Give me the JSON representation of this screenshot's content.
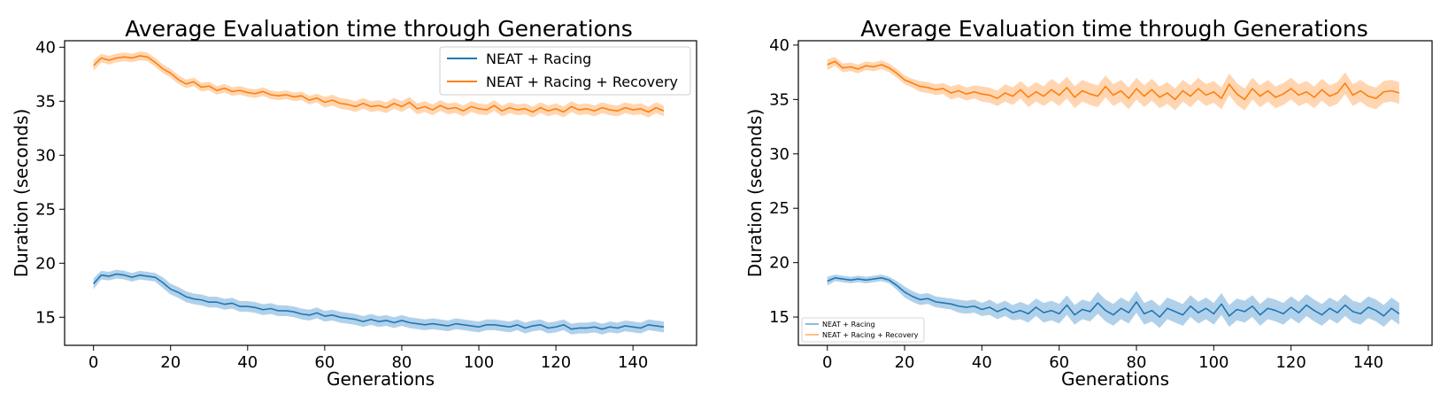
{
  "chart_data": [
    {
      "type": "line",
      "title": "Average Evaluation time through Generations",
      "xlabel": "Generations",
      "ylabel": "Duration (seconds)",
      "xlim": [
        -7.5,
        156.5
      ],
      "ylim": [
        12.4,
        40.6
      ],
      "xticks": [
        0,
        20,
        40,
        60,
        80,
        100,
        120,
        140
      ],
      "yticks": [
        15,
        20,
        25,
        30,
        35,
        40
      ],
      "legend_position": "top-right",
      "legend_size": "large",
      "shaded_band": "standard deviation",
      "series": [
        {
          "name": "NEAT + Racing",
          "color": "#1f77b4",
          "band_color": "#9ec5e5",
          "x": [
            0,
            2,
            4,
            6,
            8,
            10,
            12,
            14,
            16,
            18,
            20,
            22,
            24,
            26,
            28,
            30,
            32,
            34,
            36,
            38,
            40,
            42,
            44,
            46,
            48,
            50,
            52,
            54,
            56,
            58,
            60,
            62,
            64,
            66,
            68,
            70,
            72,
            74,
            76,
            78,
            80,
            82,
            84,
            86,
            88,
            90,
            92,
            94,
            96,
            98,
            100,
            102,
            104,
            106,
            108,
            110,
            112,
            114,
            116,
            118,
            120,
            122,
            124,
            126,
            128,
            130,
            132,
            134,
            136,
            138,
            140,
            142,
            144,
            146,
            148
          ],
          "y": [
            18.1,
            18.9,
            18.8,
            19.0,
            18.9,
            18.7,
            18.9,
            18.8,
            18.7,
            18.2,
            17.6,
            17.3,
            16.9,
            16.7,
            16.6,
            16.4,
            16.4,
            16.2,
            16.3,
            16.0,
            16.0,
            15.9,
            15.7,
            15.8,
            15.6,
            15.6,
            15.5,
            15.3,
            15.2,
            15.4,
            15.1,
            15.2,
            15.0,
            14.9,
            14.8,
            14.6,
            14.8,
            14.6,
            14.7,
            14.5,
            14.7,
            14.5,
            14.4,
            14.3,
            14.4,
            14.3,
            14.2,
            14.4,
            14.3,
            14.2,
            14.1,
            14.3,
            14.3,
            14.2,
            14.1,
            14.3,
            14.0,
            14.2,
            14.3,
            14.0,
            14.1,
            14.3,
            13.9,
            14.0,
            14.0,
            14.1,
            13.9,
            14.1,
            14.0,
            14.2,
            14.1,
            14.0,
            14.3,
            14.2,
            14.1
          ],
          "band": [
            0.5,
            0.4,
            0.4,
            0.4,
            0.4,
            0.4,
            0.4,
            0.4,
            0.4,
            0.5,
            0.5,
            0.5,
            0.5,
            0.5,
            0.5,
            0.5,
            0.5,
            0.5,
            0.5,
            0.5,
            0.5,
            0.5,
            0.5,
            0.5,
            0.5,
            0.5,
            0.5,
            0.5,
            0.5,
            0.5,
            0.5,
            0.5,
            0.5,
            0.5,
            0.5,
            0.5,
            0.5,
            0.5,
            0.5,
            0.5,
            0.5,
            0.5,
            0.5,
            0.5,
            0.5,
            0.5,
            0.5,
            0.5,
            0.5,
            0.5,
            0.5,
            0.5,
            0.5,
            0.5,
            0.5,
            0.5,
            0.5,
            0.5,
            0.5,
            0.5,
            0.5,
            0.5,
            0.5,
            0.5,
            0.5,
            0.5,
            0.5,
            0.5,
            0.5,
            0.5,
            0.5,
            0.5,
            0.5,
            0.5,
            0.5
          ]
        },
        {
          "name": "NEAT + Racing + Recovery",
          "color": "#ff7f0e",
          "band_color": "#ffcc9e",
          "x": [
            0,
            2,
            4,
            6,
            8,
            10,
            12,
            14,
            16,
            18,
            20,
            22,
            24,
            26,
            28,
            30,
            32,
            34,
            36,
            38,
            40,
            42,
            44,
            46,
            48,
            50,
            52,
            54,
            56,
            58,
            60,
            62,
            64,
            66,
            68,
            70,
            72,
            74,
            76,
            78,
            80,
            82,
            84,
            86,
            88,
            90,
            92,
            94,
            96,
            98,
            100,
            102,
            104,
            106,
            108,
            110,
            112,
            114,
            116,
            118,
            120,
            122,
            124,
            126,
            128,
            130,
            132,
            134,
            136,
            138,
            140,
            142,
            144,
            146,
            148
          ],
          "y": [
            38.3,
            39.0,
            38.8,
            39.0,
            39.1,
            39.0,
            39.2,
            39.1,
            38.6,
            38.0,
            37.6,
            37.0,
            36.6,
            36.8,
            36.3,
            36.4,
            36.0,
            36.2,
            35.9,
            36.0,
            35.8,
            35.7,
            35.9,
            35.6,
            35.5,
            35.6,
            35.4,
            35.5,
            35.1,
            35.3,
            34.9,
            35.1,
            34.8,
            34.7,
            34.5,
            34.8,
            34.5,
            34.6,
            34.4,
            34.8,
            34.5,
            34.9,
            34.3,
            34.5,
            34.2,
            34.6,
            34.3,
            34.4,
            34.1,
            34.5,
            34.3,
            34.2,
            34.6,
            34.1,
            34.4,
            34.2,
            34.3,
            34.0,
            34.4,
            34.1,
            34.3,
            34.0,
            34.5,
            34.2,
            34.3,
            34.1,
            34.4,
            34.2,
            34.1,
            34.4,
            34.2,
            34.3,
            34.0,
            34.4,
            34.1
          ],
          "band": [
            0.5,
            0.4,
            0.4,
            0.4,
            0.4,
            0.4,
            0.4,
            0.4,
            0.4,
            0.4,
            0.4,
            0.4,
            0.4,
            0.4,
            0.4,
            0.4,
            0.4,
            0.4,
            0.4,
            0.4,
            0.4,
            0.4,
            0.4,
            0.4,
            0.4,
            0.4,
            0.4,
            0.4,
            0.4,
            0.4,
            0.5,
            0.5,
            0.5,
            0.5,
            0.5,
            0.5,
            0.5,
            0.5,
            0.5,
            0.5,
            0.5,
            0.5,
            0.5,
            0.5,
            0.5,
            0.5,
            0.5,
            0.5,
            0.5,
            0.5,
            0.5,
            0.5,
            0.5,
            0.5,
            0.5,
            0.5,
            0.5,
            0.5,
            0.5,
            0.5,
            0.5,
            0.5,
            0.5,
            0.5,
            0.5,
            0.5,
            0.5,
            0.5,
            0.5,
            0.5,
            0.5,
            0.5,
            0.5,
            0.5,
            0.5
          ]
        }
      ]
    },
    {
      "type": "line",
      "title": "Average Evaluation time through Generations",
      "xlabel": "Generations",
      "ylabel": "Duration (seconds)",
      "xlim": [
        -7.5,
        156.5
      ],
      "ylim": [
        12.4,
        40.4
      ],
      "xticks": [
        0,
        20,
        40,
        60,
        80,
        100,
        120,
        140
      ],
      "yticks": [
        15,
        20,
        25,
        30,
        35,
        40
      ],
      "legend_position": "bottom-left",
      "legend_size": "small",
      "shaded_band": "standard deviation",
      "series": [
        {
          "name": "NEAT + Racing",
          "color": "#1f77b4",
          "band_color": "#9ec5e5",
          "x": [
            0,
            2,
            4,
            6,
            8,
            10,
            12,
            14,
            16,
            18,
            20,
            22,
            24,
            26,
            28,
            30,
            32,
            34,
            36,
            38,
            40,
            42,
            44,
            46,
            48,
            50,
            52,
            54,
            56,
            58,
            60,
            62,
            64,
            66,
            68,
            70,
            72,
            74,
            76,
            78,
            80,
            82,
            84,
            86,
            88,
            90,
            92,
            94,
            96,
            98,
            100,
            102,
            104,
            106,
            108,
            110,
            112,
            114,
            116,
            118,
            120,
            122,
            124,
            126,
            128,
            130,
            132,
            134,
            136,
            138,
            140,
            142,
            144,
            146,
            148
          ],
          "y": [
            18.3,
            18.6,
            18.5,
            18.4,
            18.5,
            18.4,
            18.5,
            18.6,
            18.4,
            17.9,
            17.3,
            16.9,
            16.6,
            16.7,
            16.4,
            16.3,
            16.2,
            16.0,
            15.9,
            16.0,
            15.7,
            15.9,
            15.5,
            15.8,
            15.4,
            15.6,
            15.3,
            15.9,
            15.4,
            15.6,
            15.3,
            16.1,
            15.2,
            15.7,
            15.5,
            16.3,
            15.6,
            15.2,
            15.8,
            15.4,
            16.4,
            15.3,
            15.6,
            15.0,
            15.8,
            15.5,
            15.2,
            16.0,
            15.4,
            15.8,
            15.3,
            16.2,
            15.1,
            15.7,
            15.5,
            16.0,
            15.2,
            15.8,
            15.6,
            15.3,
            15.9,
            15.4,
            16.1,
            15.6,
            15.2,
            15.8,
            15.4,
            16.1,
            15.5,
            15.3,
            15.9,
            15.6,
            15.1,
            15.8,
            15.3
          ],
          "band": [
            0.4,
            0.3,
            0.3,
            0.3,
            0.3,
            0.3,
            0.3,
            0.3,
            0.3,
            0.4,
            0.5,
            0.5,
            0.5,
            0.5,
            0.5,
            0.5,
            0.5,
            0.6,
            0.6,
            0.6,
            0.6,
            0.7,
            0.7,
            0.7,
            0.7,
            0.8,
            0.8,
            0.8,
            0.9,
            0.9,
            0.9,
            0.9,
            0.9,
            0.9,
            0.9,
            1.0,
            1.0,
            1.0,
            1.0,
            1.0,
            1.0,
            1.0,
            1.0,
            1.0,
            1.0,
            1.0,
            1.0,
            1.0,
            1.0,
            1.0,
            1.0,
            1.0,
            1.0,
            1.0,
            1.0,
            1.0,
            1.0,
            1.0,
            1.0,
            1.0,
            1.0,
            1.0,
            1.0,
            1.0,
            1.0,
            1.0,
            1.0,
            1.0,
            1.0,
            1.0,
            1.0,
            1.0,
            1.0,
            1.0,
            1.0
          ]
        },
        {
          "name": "NEAT + Racing + Recovery",
          "color": "#ff7f0e",
          "band_color": "#ffcc9e",
          "x": [
            0,
            2,
            4,
            6,
            8,
            10,
            12,
            14,
            16,
            18,
            20,
            22,
            24,
            26,
            28,
            30,
            32,
            34,
            36,
            38,
            40,
            42,
            44,
            46,
            48,
            50,
            52,
            54,
            56,
            58,
            60,
            62,
            64,
            66,
            68,
            70,
            72,
            74,
            76,
            78,
            80,
            82,
            84,
            86,
            88,
            90,
            92,
            94,
            96,
            98,
            100,
            102,
            104,
            106,
            108,
            110,
            112,
            114,
            116,
            118,
            120,
            122,
            124,
            126,
            128,
            130,
            132,
            134,
            136,
            138,
            140,
            142,
            144,
            146,
            148
          ],
          "y": [
            38.2,
            38.5,
            37.9,
            38.0,
            37.8,
            38.1,
            38.0,
            38.2,
            37.9,
            37.4,
            36.8,
            36.5,
            36.2,
            36.1,
            35.9,
            36.0,
            35.6,
            35.8,
            35.5,
            35.7,
            35.5,
            35.4,
            35.1,
            35.6,
            35.3,
            35.9,
            35.2,
            35.7,
            35.3,
            35.9,
            35.4,
            36.1,
            35.2,
            35.8,
            35.5,
            35.3,
            36.2,
            35.4,
            35.8,
            35.1,
            36.0,
            35.3,
            35.9,
            35.2,
            35.6,
            35.0,
            35.8,
            35.3,
            36.0,
            35.4,
            35.7,
            35.1,
            36.4,
            35.5,
            35.0,
            36.0,
            35.3,
            35.8,
            35.2,
            35.5,
            36.0,
            35.4,
            35.7,
            35.2,
            35.9,
            35.3,
            35.6,
            36.5,
            35.4,
            35.8,
            35.3,
            35.1,
            35.7,
            35.8,
            35.6
          ],
          "band": [
            0.5,
            0.4,
            0.4,
            0.4,
            0.4,
            0.4,
            0.4,
            0.4,
            0.4,
            0.4,
            0.4,
            0.4,
            0.5,
            0.5,
            0.5,
            0.5,
            0.6,
            0.6,
            0.6,
            0.6,
            0.7,
            0.7,
            0.7,
            0.8,
            0.8,
            0.8,
            0.9,
            0.9,
            0.9,
            1.0,
            1.0,
            1.0,
            1.0,
            1.0,
            1.0,
            1.0,
            1.0,
            1.0,
            1.0,
            1.0,
            1.0,
            1.0,
            1.0,
            1.0,
            1.0,
            1.0,
            1.0,
            1.0,
            1.0,
            1.0,
            1.0,
            1.0,
            1.0,
            1.0,
            1.0,
            1.0,
            1.0,
            1.0,
            1.0,
            1.0,
            1.0,
            1.0,
            1.0,
            1.0,
            1.0,
            1.0,
            1.0,
            1.0,
            1.0,
            1.0,
            1.0,
            1.0,
            1.0,
            1.0,
            1.0
          ]
        }
      ]
    }
  ]
}
